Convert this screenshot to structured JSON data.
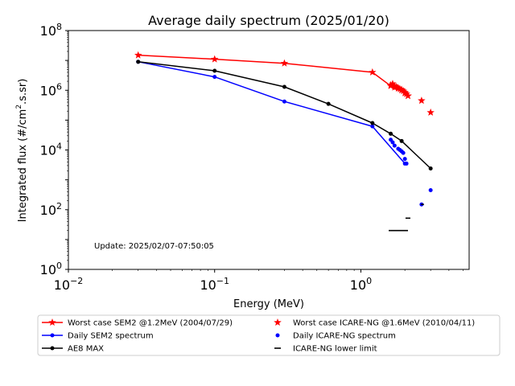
{
  "chart_data": {
    "type": "line",
    "title": "Average daily spectrum (2025/01/20)",
    "xlabel": "Energy (MeV)",
    "ylabel_parts": [
      "Integrated flux (#/cm",
      "2",
      ".s.sr)"
    ],
    "x_scale": "log",
    "y_scale": "log",
    "xlim": [
      0.01,
      5.5
    ],
    "ylim": [
      1,
      100000000
    ],
    "grid": false,
    "legend_position": "below plot",
    "annotation": "Update: 2025/02/07-07:50:05",
    "x_ticks": [
      {
        "value": 0.01,
        "base": "10",
        "exp": "−2"
      },
      {
        "value": 0.1,
        "base": "10",
        "exp": "−1"
      },
      {
        "value": 1,
        "base": "10",
        "exp": "0"
      }
    ],
    "y_ticks": [
      {
        "value": 1,
        "base": "10",
        "exp": "0"
      },
      {
        "value": 100,
        "base": "10",
        "exp": "2"
      },
      {
        "value": 10000,
        "base": "10",
        "exp": "4"
      },
      {
        "value": 1000000,
        "base": "10",
        "exp": "6"
      },
      {
        "value": 100000000,
        "base": "10",
        "exp": "8"
      }
    ],
    "series": [
      {
        "name": "Worst case SEM2 @1.2MeV (2004/07/29)",
        "style": "line",
        "marker": "star",
        "color": "#ff0000",
        "x": [
          0.03,
          0.1,
          0.3,
          1.2,
          1.6,
          1.7,
          1.8,
          1.9,
          2.0,
          2.1
        ],
        "y": [
          15000000,
          11000000,
          8000000,
          4000000,
          1400000,
          1250000,
          1150000,
          1000000,
          800000,
          650000
        ]
      },
      {
        "name": "Daily SEM2 spectrum",
        "style": "line",
        "marker": "dot",
        "color": "#0000ff",
        "x": [
          0.03,
          0.1,
          0.3,
          1.2,
          2.0
        ],
        "y": [
          9000000,
          2800000,
          420000,
          62000,
          3500
        ]
      },
      {
        "name": "AE8 MAX",
        "style": "line",
        "marker": "dot",
        "color": "#000000",
        "x": [
          0.03,
          0.1,
          0.3,
          0.6,
          1.2,
          1.6,
          1.9,
          3.0
        ],
        "y": [
          9000000,
          4500000,
          1300000,
          350000,
          80000,
          35000,
          20000,
          2400
        ]
      },
      {
        "name": "Worst case ICARE-NG @1.6MeV (2010/04/11)",
        "style": "markers",
        "marker": "star",
        "color": "#ff0000",
        "x": [
          1.6,
          1.65,
          1.7,
          1.75,
          1.8,
          1.85,
          1.9,
          1.95,
          2.0,
          2.05,
          2.1,
          2.6,
          3.0
        ],
        "y": [
          1500000,
          1650000,
          1400000,
          1300000,
          1200000,
          1100000,
          1050000,
          950000,
          850000,
          750000,
          650000,
          450000,
          180000
        ]
      },
      {
        "name": "Daily ICARE-NG spectrum",
        "style": "markers",
        "marker": "dot",
        "color": "#0000ff",
        "x": [
          1.6,
          1.65,
          1.7,
          1.8,
          1.85,
          1.9,
          1.95,
          2.0,
          2.05,
          2.6,
          3.0
        ],
        "y": [
          22000,
          18000,
          14000,
          11000,
          10000,
          9000,
          8000,
          5000,
          3500,
          150,
          450
        ]
      },
      {
        "name": "ICARE-NG lower limit",
        "style": "hsegments",
        "marker": "dash",
        "color": "#000000",
        "segments": [
          {
            "x0": 1.55,
            "x1": 2.1,
            "y": 20
          },
          {
            "x0": 2.02,
            "x1": 2.18,
            "y": 52
          },
          {
            "x0": 2.58,
            "x1": 2.7,
            "y": 150
          }
        ]
      }
    ],
    "legend_layout": [
      {
        "series": 0,
        "col": 0,
        "row": 0
      },
      {
        "series": 3,
        "col": 1,
        "row": 0
      },
      {
        "series": 1,
        "col": 0,
        "row": 1
      },
      {
        "series": 4,
        "col": 1,
        "row": 1
      },
      {
        "series": 2,
        "col": 0,
        "row": 2
      },
      {
        "series": 5,
        "col": 1,
        "row": 2
      }
    ]
  }
}
